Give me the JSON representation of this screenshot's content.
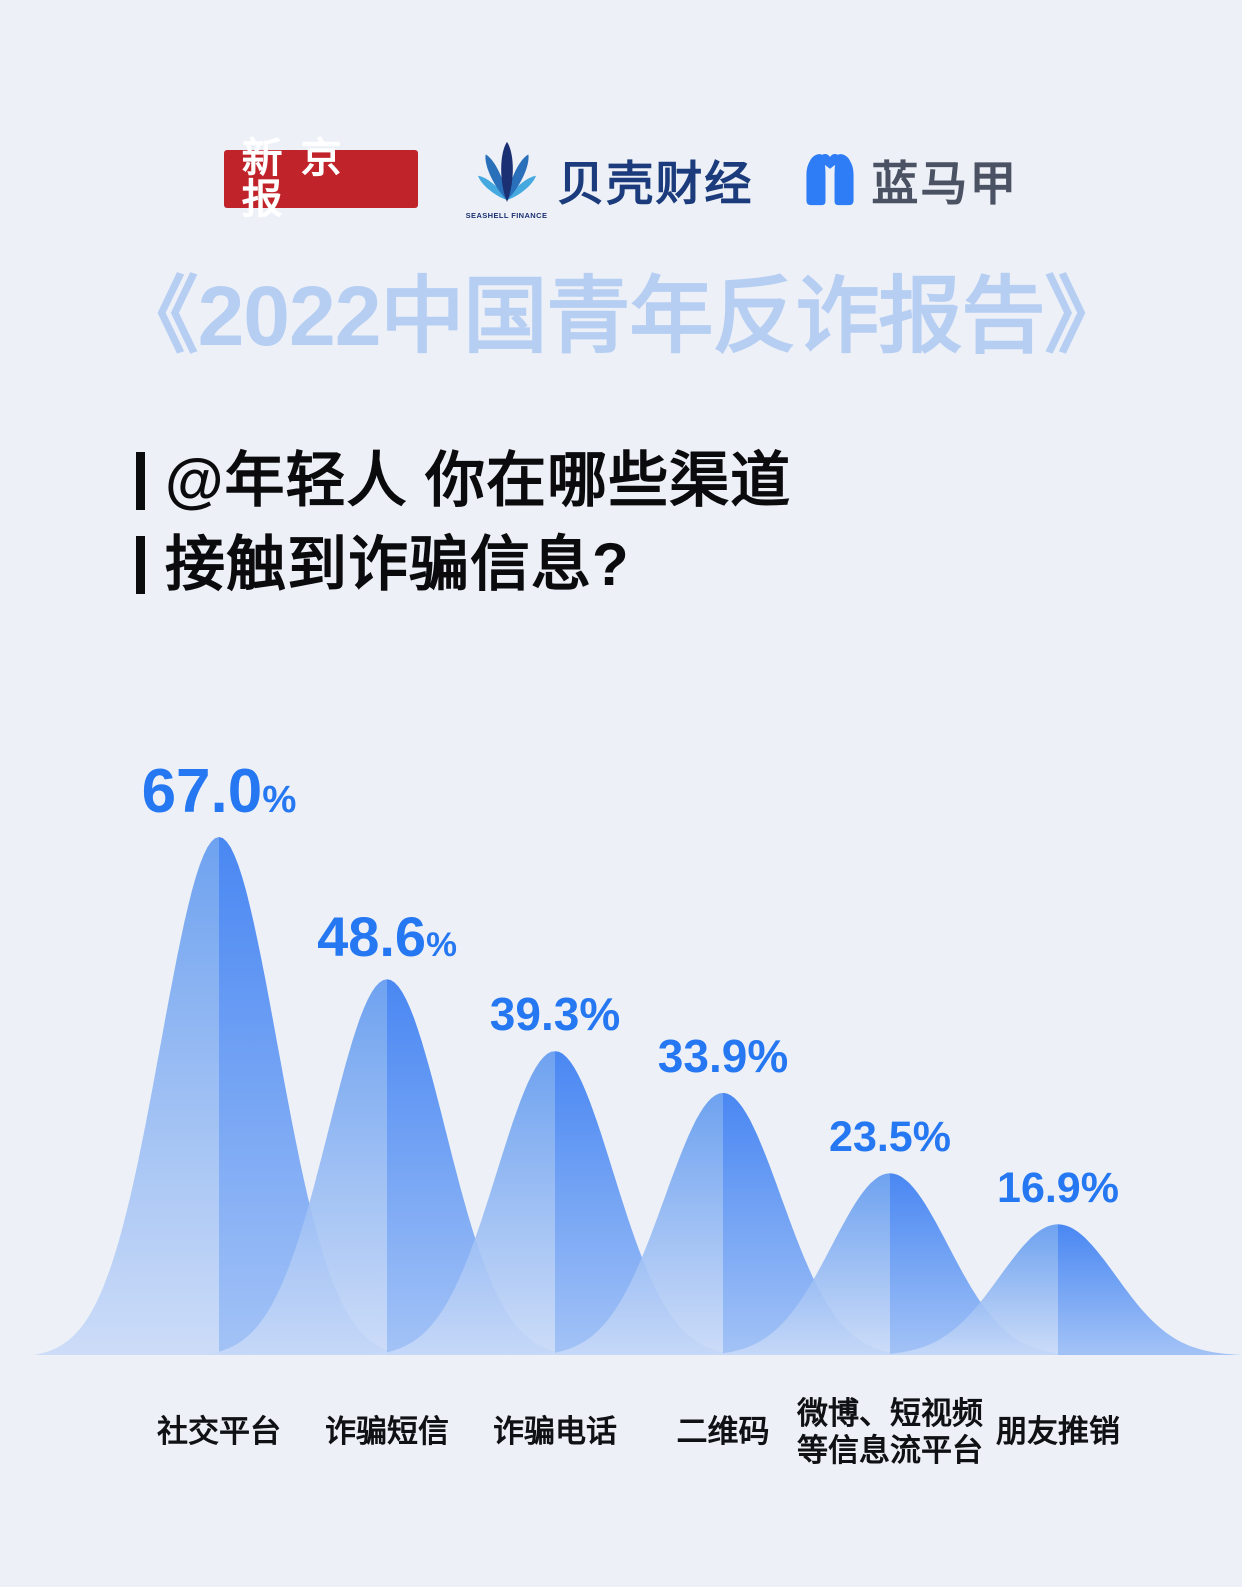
{
  "header": {
    "logo_xinjingbao": "新京报",
    "logo_seashell_en": "SEASHELL FINANCE",
    "logo_seashell_cn": "贝壳财经",
    "logo_lanmajia": "蓝马甲"
  },
  "title": "《2022中国青年反诈报告》",
  "question": {
    "line1": "@年轻人 你在哪些渠道",
    "line2": "接触到诈骗信息?"
  },
  "chart_data": {
    "type": "area",
    "subtype": "bell-ridges",
    "title": "@年轻人 你在哪些渠道接触到诈骗信息?",
    "categories": [
      "社交平台",
      "诈骗短信",
      "诈骗电话",
      "二维码",
      "微博、短视频\n等信息流平台",
      "朋友推销"
    ],
    "values": [
      67.0,
      48.6,
      39.3,
      33.9,
      23.5,
      16.9
    ],
    "value_labels": [
      "67.0",
      "48.6",
      "39.3",
      "33.9",
      "23.5",
      "16.9"
    ],
    "unit": "%",
    "ylim": [
      0,
      70
    ],
    "grid": false,
    "legend": false,
    "colors": {
      "value_label": "#2577F2",
      "bell_left_top": "#6099EF",
      "bell_left_bottom": "#C9DAF8",
      "bell_right_top": "#3B7EF2",
      "bell_right_bottom": "#9DBFF6",
      "background": "#EDF1F7"
    }
  },
  "brand_colors": {
    "xinjingbao_red": "#C0242A",
    "seashell_navy": "#1C3B7C",
    "lanmajia_blue": "#2E7CF6",
    "title_blue": "#B7CEF3"
  }
}
